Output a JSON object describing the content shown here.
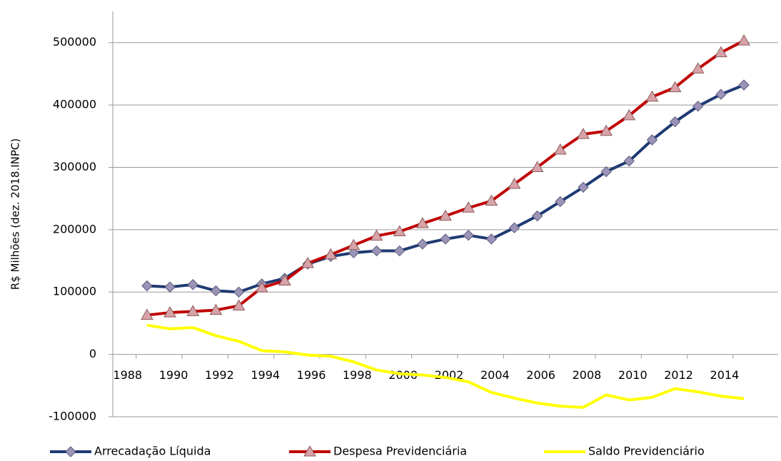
{
  "chart_data": {
    "type": "line",
    "y_label": "R$ Milhões (dez. 2018.INPC)",
    "x": [
      1989,
      1990,
      1991,
      1992,
      1993,
      1994,
      1995,
      1996,
      1997,
      1998,
      1999,
      2000,
      2001,
      2002,
      2003,
      2004,
      2005,
      2006,
      2007,
      2008,
      2009,
      2010,
      2011,
      2012,
      2013,
      2014,
      2015
    ],
    "xticks": [
      1988,
      1990,
      1992,
      1994,
      1996,
      1998,
      2000,
      2002,
      2004,
      2006,
      2008,
      2010,
      2012,
      2014
    ],
    "ylim": [
      -100000,
      550000
    ],
    "yticks": [
      -100000,
      0,
      100000,
      200000,
      300000,
      400000,
      500000
    ],
    "grid": true,
    "legend": "bottom",
    "series": [
      {
        "name": "Arrecadação Líquida",
        "color": "#1f3a73",
        "marker": "diamond",
        "marker_color": "#9c93b8",
        "values": [
          110000,
          108000,
          112000,
          102000,
          100000,
          113000,
          122000,
          145000,
          157000,
          163000,
          166000,
          166000,
          177000,
          185000,
          191000,
          185000,
          203000,
          222000,
          245000,
          268000,
          293000,
          310000,
          344000,
          373000,
          398000,
          417000,
          432000
        ]
      },
      {
        "name": "Despesa Previdenciária",
        "color": "#c00000",
        "marker": "triangle",
        "marker_color": "#d7a3a8",
        "values": [
          63000,
          67000,
          69000,
          71000,
          78000,
          107000,
          118000,
          146000,
          160000,
          175000,
          190000,
          197000,
          210000,
          222000,
          235000,
          246000,
          273000,
          300000,
          328000,
          353000,
          358000,
          383000,
          413000,
          428000,
          458000,
          484000,
          503000
        ]
      },
      {
        "name": "Saldo Previdenciário",
        "color": "#ffff00",
        "marker": "none",
        "marker_color": "#ffff00",
        "values": [
          47000,
          41000,
          43000,
          30000,
          21000,
          6000,
          4000,
          -1000,
          -3000,
          -12000,
          -25000,
          -31000,
          -33000,
          -37000,
          -44000,
          -61000,
          -70000,
          -78000,
          -83000,
          -85000,
          -65000,
          -73000,
          -69000,
          -55000,
          -60000,
          -67000,
          -71000
        ]
      }
    ]
  }
}
